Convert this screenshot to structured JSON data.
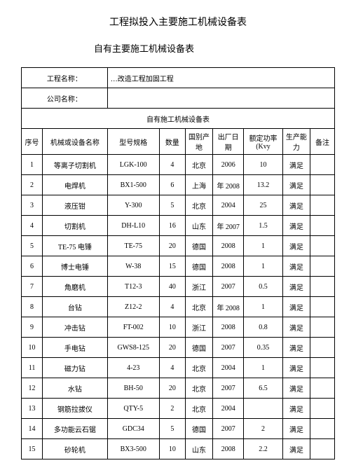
{
  "title1": "工程拟投入主要施工机械设备表",
  "title2": "自有主要施工机械设备表",
  "header": {
    "projectNameLabel": "工程名称",
    "colon": "：",
    "projectNameValue": "…改造工程加固工程",
    "companyNameLabel": "公司名称",
    "companyNameValue": ""
  },
  "innerTitle": "自有施工机械设备表",
  "columns": {
    "seq": "序号",
    "name": "机械或设备名称",
    "model": "型号规格",
    "qty": "数量",
    "origin": "国别产地",
    "date": "出厂日期",
    "power": "额定功率 (Kvy",
    "capacity": "生产能力",
    "remark": "备注"
  },
  "rows": [
    {
      "seq": "1",
      "name": "等离子切割机",
      "model": "LGK-100",
      "qty": "4",
      "origin": "北京",
      "date": "2006",
      "power": "10",
      "capacity": "满足",
      "remark": ""
    },
    {
      "seq": "2",
      "name": "电焊机",
      "model": "BX1-500",
      "qty": "6",
      "origin": "上海",
      "date": "年 2008",
      "power": "13.2",
      "capacity": "满足",
      "remark": ""
    },
    {
      "seq": "3",
      "name": "液压钳",
      "model": "Y-300",
      "qty": "5",
      "origin": "北京",
      "date": "2004",
      "power": "25",
      "capacity": "满足",
      "remark": ""
    },
    {
      "seq": "4",
      "name": "切割机",
      "model": "DH-L10",
      "qty": "16",
      "origin": "山东",
      "date": "年 2007",
      "power": "1.5",
      "capacity": "满足",
      "remark": ""
    },
    {
      "seq": "5",
      "name": "TE-75 电锤",
      "model": "TE-75",
      "qty": "20",
      "origin": "德国",
      "date": "2008",
      "power": "1",
      "capacity": "满足",
      "remark": ""
    },
    {
      "seq": "6",
      "name": "博士电锤",
      "model": "W-38",
      "qty": "15",
      "origin": "德国",
      "date": "2008",
      "power": "1",
      "capacity": "满足",
      "remark": ""
    },
    {
      "seq": "7",
      "name": "角磨机",
      "model": "T12-3",
      "qty": "40",
      "origin": "浙江",
      "date": "2007",
      "power": "0.5",
      "capacity": "满足",
      "remark": ""
    },
    {
      "seq": "8",
      "name": "台钻",
      "model": "Z12-2",
      "qty": "4",
      "origin": "北京",
      "date": "年 2008",
      "power": "1",
      "capacity": "满足",
      "remark": ""
    },
    {
      "seq": "9",
      "name": "冲击钻",
      "model": "FT-002",
      "qty": "10",
      "origin": "浙江",
      "date": "2008",
      "power": "0.8",
      "capacity": "满足",
      "remark": ""
    },
    {
      "seq": "10",
      "name": "手电钻",
      "model": "GWS8-125",
      "qty": "20",
      "origin": "德国",
      "date": "2007",
      "power": "0.35",
      "capacity": "满足",
      "remark": ""
    },
    {
      "seq": "11",
      "name": "磁力钻",
      "model": "4-23",
      "qty": "4",
      "origin": "北京",
      "date": "2004",
      "power": "1",
      "capacity": "满足",
      "remark": ""
    },
    {
      "seq": "12",
      "name": "水钻",
      "model": "BH-50",
      "qty": "20",
      "origin": "北京",
      "date": "2007",
      "power": "6.5",
      "capacity": "满足",
      "remark": ""
    },
    {
      "seq": "13",
      "name": "钢筋拉拔仪",
      "model": "QTY-5",
      "qty": "2",
      "origin": "北京",
      "date": "2004",
      "power": "",
      "capacity": "满足",
      "remark": ""
    },
    {
      "seq": "14",
      "name": "多功能云石锯",
      "model": "GDC34",
      "qty": "5",
      "origin": "德国",
      "date": "2007",
      "power": "2",
      "capacity": "满足",
      "remark": ""
    },
    {
      "seq": "15",
      "name": "砂轮机",
      "model": "BX3-500",
      "qty": "10",
      "origin": "山东",
      "date": "2008",
      "power": "2.2",
      "capacity": "满足",
      "remark": ""
    }
  ]
}
